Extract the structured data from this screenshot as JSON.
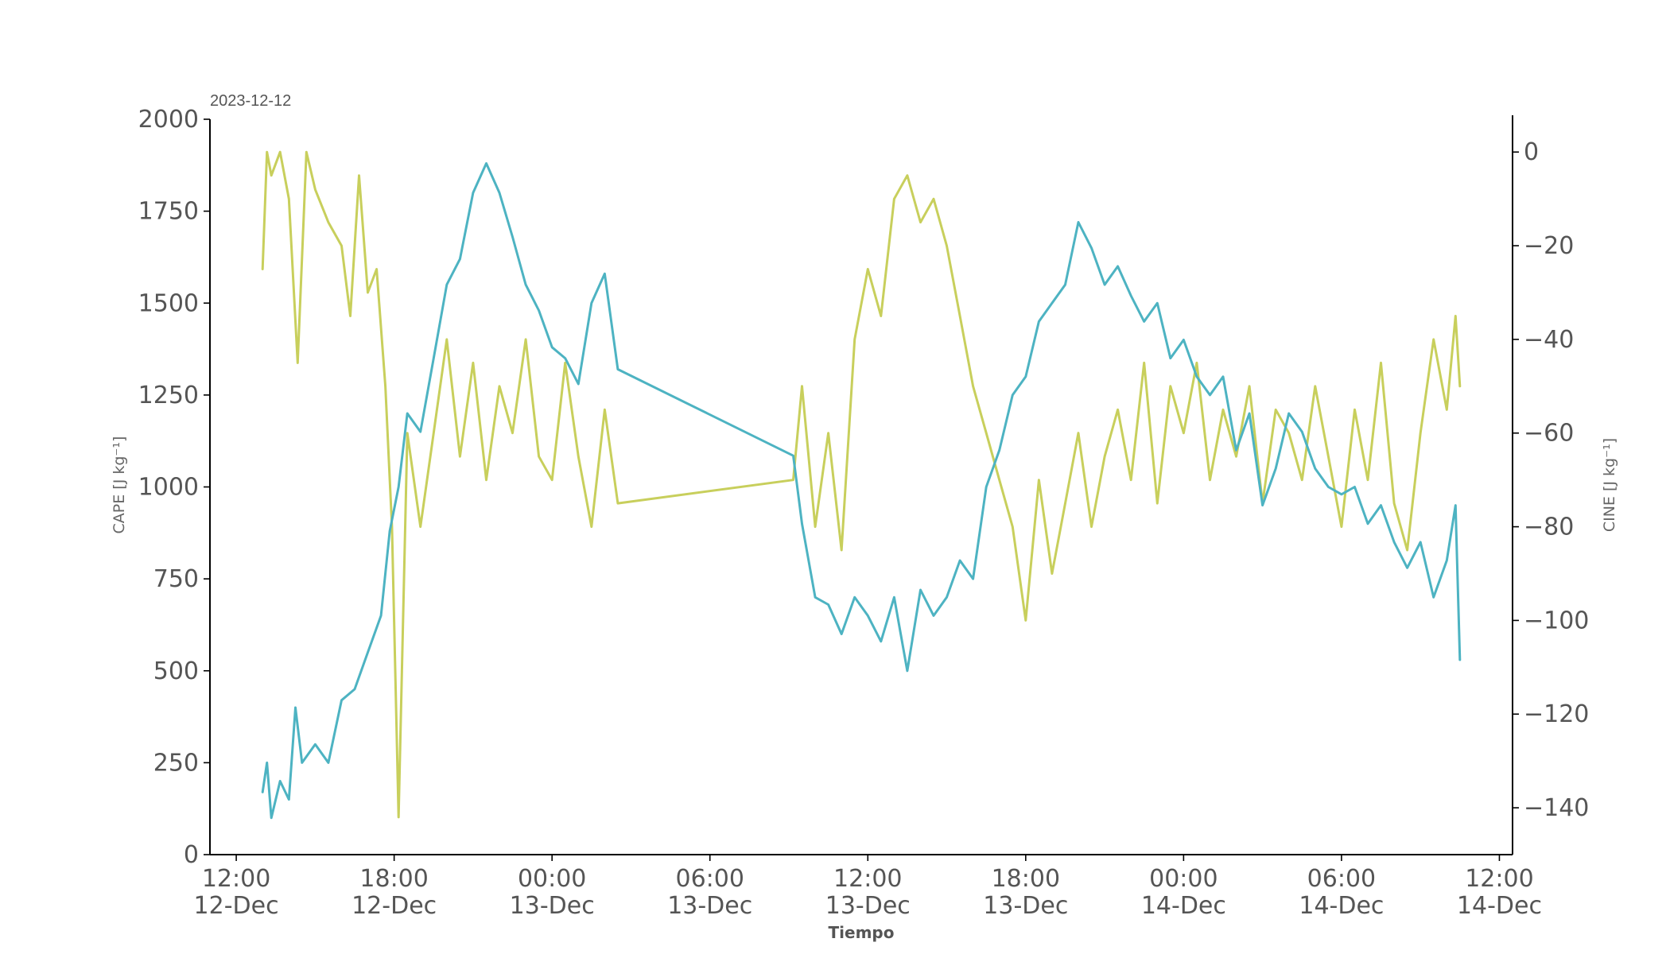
{
  "chart_data": {
    "type": "line",
    "title": "2023-12-12",
    "xlabel": "Tiempo",
    "ylabel_left": "CAPE [J kg⁻¹]",
    "ylabel_right": "CINE [J kg⁻¹]",
    "xlim": [
      "2023-12-12 11:00",
      "2023-12-14 12:30"
    ],
    "ylim_left": [
      0,
      2000
    ],
    "ylim_right": [
      -150,
      7
    ],
    "grid": false,
    "legend": "none",
    "x_ticks": [
      {
        "time": "2023-12-12 12:00",
        "line1": "12:00",
        "line2": "12-Dec"
      },
      {
        "time": "2023-12-12 18:00",
        "line1": "18:00",
        "line2": "12-Dec"
      },
      {
        "time": "2023-12-13 00:00",
        "line1": "00:00",
        "line2": "13-Dec"
      },
      {
        "time": "2023-12-13 06:00",
        "line1": "06:00",
        "line2": "13-Dec"
      },
      {
        "time": "2023-12-13 12:00",
        "line1": "12:00",
        "line2": "13-Dec"
      },
      {
        "time": "2023-12-13 18:00",
        "line1": "18:00",
        "line2": "13-Dec"
      },
      {
        "time": "2023-12-14 00:00",
        "line1": "00:00",
        "line2": "14-Dec"
      },
      {
        "time": "2023-12-14 06:00",
        "line1": "06:00",
        "line2": "14-Dec"
      },
      {
        "time": "2023-12-14 12:00",
        "line1": "12:00",
        "line2": "14-Dec"
      }
    ],
    "y_ticks_left": [
      0,
      250,
      500,
      750,
      1000,
      1250,
      1500,
      1750,
      2000
    ],
    "y_ticks_right": [
      0,
      -20,
      -40,
      -60,
      -80,
      -100,
      -120,
      -140
    ],
    "series": [
      {
        "axis": "left",
        "color": "#4db3c2",
        "points": [
          [
            "2023-12-12 13:00",
            170
          ],
          [
            "2023-12-12 13:10",
            250
          ],
          [
            "2023-12-12 13:20",
            100
          ],
          [
            "2023-12-12 13:40",
            200
          ],
          [
            "2023-12-12 14:00",
            150
          ],
          [
            "2023-12-12 14:15",
            400
          ],
          [
            "2023-12-12 14:30",
            250
          ],
          [
            "2023-12-12 15:00",
            300
          ],
          [
            "2023-12-12 15:30",
            250
          ],
          [
            "2023-12-12 16:00",
            420
          ],
          [
            "2023-12-12 16:30",
            450
          ],
          [
            "2023-12-12 17:00",
            550
          ],
          [
            "2023-12-12 17:30",
            650
          ],
          [
            "2023-12-12 17:50",
            880
          ],
          [
            "2023-12-12 18:10",
            1000
          ],
          [
            "2023-12-12 18:30",
            1200
          ],
          [
            "2023-12-12 19:00",
            1150
          ],
          [
            "2023-12-12 19:30",
            1350
          ],
          [
            "2023-12-12 20:00",
            1550
          ],
          [
            "2023-12-12 20:30",
            1620
          ],
          [
            "2023-12-12 21:00",
            1800
          ],
          [
            "2023-12-12 21:30",
            1880
          ],
          [
            "2023-12-12 22:00",
            1800
          ],
          [
            "2023-12-12 22:30",
            1680
          ],
          [
            "2023-12-12 23:00",
            1550
          ],
          [
            "2023-12-12 23:30",
            1480
          ],
          [
            "2023-12-13 00:00",
            1380
          ],
          [
            "2023-12-13 00:30",
            1350
          ],
          [
            "2023-12-13 01:00",
            1280
          ],
          [
            "2023-12-13 01:30",
            1500
          ],
          [
            "2023-12-13 02:00",
            1580
          ],
          [
            "2023-12-13 02:30",
            1320
          ],
          [
            "2023-12-13 09:10",
            1085
          ],
          [
            "2023-12-13 09:30",
            900
          ],
          [
            "2023-12-13 10:00",
            700
          ],
          [
            "2023-12-13 10:30",
            680
          ],
          [
            "2023-12-13 11:00",
            600
          ],
          [
            "2023-12-13 11:30",
            700
          ],
          [
            "2023-12-13 12:00",
            650
          ],
          [
            "2023-12-13 12:30",
            580
          ],
          [
            "2023-12-13 13:00",
            700
          ],
          [
            "2023-12-13 13:30",
            500
          ],
          [
            "2023-12-13 14:00",
            720
          ],
          [
            "2023-12-13 14:30",
            650
          ],
          [
            "2023-12-13 15:00",
            700
          ],
          [
            "2023-12-13 15:30",
            800
          ],
          [
            "2023-12-13 16:00",
            750
          ],
          [
            "2023-12-13 16:30",
            1000
          ],
          [
            "2023-12-13 17:00",
            1100
          ],
          [
            "2023-12-13 17:30",
            1250
          ],
          [
            "2023-12-13 18:00",
            1300
          ],
          [
            "2023-12-13 18:30",
            1450
          ],
          [
            "2023-12-13 19:00",
            1500
          ],
          [
            "2023-12-13 19:30",
            1550
          ],
          [
            "2023-12-13 20:00",
            1720
          ],
          [
            "2023-12-13 20:30",
            1650
          ],
          [
            "2023-12-13 21:00",
            1550
          ],
          [
            "2023-12-13 21:30",
            1600
          ],
          [
            "2023-12-13 22:00",
            1520
          ],
          [
            "2023-12-13 22:30",
            1450
          ],
          [
            "2023-12-13 23:00",
            1500
          ],
          [
            "2023-12-13 23:30",
            1350
          ],
          [
            "2023-12-14 00:00",
            1400
          ],
          [
            "2023-12-14 00:30",
            1300
          ],
          [
            "2023-12-14 01:00",
            1250
          ],
          [
            "2023-12-14 01:30",
            1300
          ],
          [
            "2023-12-14 02:00",
            1100
          ],
          [
            "2023-12-14 02:30",
            1200
          ],
          [
            "2023-12-14 03:00",
            950
          ],
          [
            "2023-12-14 03:30",
            1050
          ],
          [
            "2023-12-14 04:00",
            1200
          ],
          [
            "2023-12-14 04:30",
            1150
          ],
          [
            "2023-12-14 05:00",
            1050
          ],
          [
            "2023-12-14 05:30",
            1000
          ],
          [
            "2023-12-14 06:00",
            980
          ],
          [
            "2023-12-14 06:30",
            1000
          ],
          [
            "2023-12-14 07:00",
            900
          ],
          [
            "2023-12-14 07:30",
            950
          ],
          [
            "2023-12-14 08:00",
            850
          ],
          [
            "2023-12-14 08:30",
            780
          ],
          [
            "2023-12-14 09:00",
            850
          ],
          [
            "2023-12-14 09:30",
            700
          ],
          [
            "2023-12-14 10:00",
            800
          ],
          [
            "2023-12-14 10:20",
            950
          ],
          [
            "2023-12-14 10:30",
            530
          ]
        ]
      },
      {
        "axis": "right",
        "color": "#c8cf5c",
        "points": [
          [
            "2023-12-12 13:00",
            -25
          ],
          [
            "2023-12-12 13:10",
            0
          ],
          [
            "2023-12-12 13:20",
            -5
          ],
          [
            "2023-12-12 13:40",
            0
          ],
          [
            "2023-12-12 14:00",
            -10
          ],
          [
            "2023-12-12 14:20",
            -45
          ],
          [
            "2023-12-12 14:40",
            0
          ],
          [
            "2023-12-12 15:00",
            -8
          ],
          [
            "2023-12-12 15:30",
            -15
          ],
          [
            "2023-12-12 16:00",
            -20
          ],
          [
            "2023-12-12 16:20",
            -35
          ],
          [
            "2023-12-12 16:40",
            -5
          ],
          [
            "2023-12-12 17:00",
            -30
          ],
          [
            "2023-12-12 17:20",
            -25
          ],
          [
            "2023-12-12 17:40",
            -50
          ],
          [
            "2023-12-12 17:55",
            -80
          ],
          [
            "2023-12-12 18:10",
            -142
          ],
          [
            "2023-12-12 18:30",
            -60
          ],
          [
            "2023-12-12 19:00",
            -80
          ],
          [
            "2023-12-12 19:30",
            -60
          ],
          [
            "2023-12-12 20:00",
            -40
          ],
          [
            "2023-12-12 20:30",
            -65
          ],
          [
            "2023-12-12 21:00",
            -45
          ],
          [
            "2023-12-12 21:30",
            -70
          ],
          [
            "2023-12-12 22:00",
            -50
          ],
          [
            "2023-12-12 22:30",
            -60
          ],
          [
            "2023-12-12 23:00",
            -40
          ],
          [
            "2023-12-12 23:30",
            -65
          ],
          [
            "2023-12-13 00:00",
            -70
          ],
          [
            "2023-12-13 00:30",
            -45
          ],
          [
            "2023-12-13 01:00",
            -65
          ],
          [
            "2023-12-13 01:30",
            -80
          ],
          [
            "2023-12-13 02:00",
            -55
          ],
          [
            "2023-12-13 02:30",
            -75
          ],
          [
            "2023-12-13 09:10",
            -70
          ],
          [
            "2023-12-13 09:30",
            -50
          ],
          [
            "2023-12-13 10:00",
            -80
          ],
          [
            "2023-12-13 10:30",
            -60
          ],
          [
            "2023-12-13 11:00",
            -85
          ],
          [
            "2023-12-13 11:30",
            -40
          ],
          [
            "2023-12-13 12:00",
            -25
          ],
          [
            "2023-12-13 12:30",
            -35
          ],
          [
            "2023-12-13 13:00",
            -10
          ],
          [
            "2023-12-13 13:30",
            -5
          ],
          [
            "2023-12-13 14:00",
            -15
          ],
          [
            "2023-12-13 14:30",
            -10
          ],
          [
            "2023-12-13 15:00",
            -20
          ],
          [
            "2023-12-13 15:30",
            -35
          ],
          [
            "2023-12-13 16:00",
            -50
          ],
          [
            "2023-12-13 16:30",
            -60
          ],
          [
            "2023-12-13 17:00",
            -70
          ],
          [
            "2023-12-13 17:30",
            -80
          ],
          [
            "2023-12-13 18:00",
            -100
          ],
          [
            "2023-12-13 18:30",
            -70
          ],
          [
            "2023-12-13 19:00",
            -90
          ],
          [
            "2023-12-13 19:30",
            -75
          ],
          [
            "2023-12-13 20:00",
            -60
          ],
          [
            "2023-12-13 20:30",
            -80
          ],
          [
            "2023-12-13 21:00",
            -65
          ],
          [
            "2023-12-13 21:30",
            -55
          ],
          [
            "2023-12-13 22:00",
            -70
          ],
          [
            "2023-12-13 22:30",
            -45
          ],
          [
            "2023-12-13 23:00",
            -75
          ],
          [
            "2023-12-13 23:30",
            -50
          ],
          [
            "2023-12-14 00:00",
            -60
          ],
          [
            "2023-12-14 00:30",
            -45
          ],
          [
            "2023-12-14 01:00",
            -70
          ],
          [
            "2023-12-14 01:30",
            -55
          ],
          [
            "2023-12-14 02:00",
            -65
          ],
          [
            "2023-12-14 02:30",
            -50
          ],
          [
            "2023-12-14 03:00",
            -75
          ],
          [
            "2023-12-14 03:30",
            -55
          ],
          [
            "2023-12-14 04:00",
            -60
          ],
          [
            "2023-12-14 04:30",
            -70
          ],
          [
            "2023-12-14 05:00",
            -50
          ],
          [
            "2023-12-14 05:30",
            -65
          ],
          [
            "2023-12-14 06:00",
            -80
          ],
          [
            "2023-12-14 06:30",
            -55
          ],
          [
            "2023-12-14 07:00",
            -70
          ],
          [
            "2023-12-14 07:30",
            -45
          ],
          [
            "2023-12-14 08:00",
            -75
          ],
          [
            "2023-12-14 08:30",
            -85
          ],
          [
            "2023-12-14 09:00",
            -60
          ],
          [
            "2023-12-14 09:30",
            -40
          ],
          [
            "2023-12-14 10:00",
            -55
          ],
          [
            "2023-12-14 10:20",
            -35
          ],
          [
            "2023-12-14 10:30",
            -50
          ]
        ]
      }
    ]
  }
}
